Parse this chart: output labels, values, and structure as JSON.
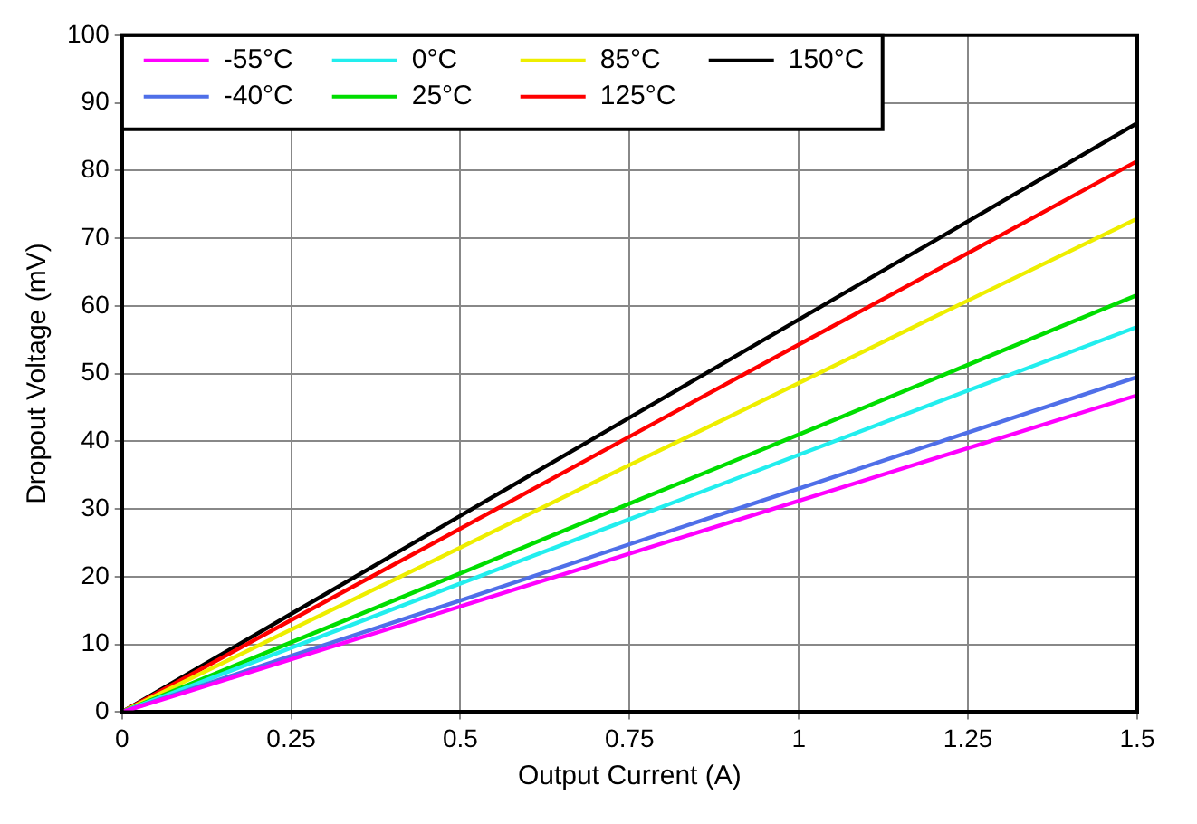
{
  "chart_data": {
    "type": "line",
    "xlabel": "Output Current (A)",
    "ylabel": "Dropout Voltage (mV)",
    "x": [
      0,
      0.25,
      0.5,
      0.75,
      1,
      1.25,
      1.5
    ],
    "series": [
      {
        "name": "-55°C",
        "color": "#ff00ff",
        "values": [
          0,
          7.8,
          15.6,
          23.4,
          31.2,
          39,
          46.8
        ]
      },
      {
        "name": "-40°C",
        "color": "#4f6fe8",
        "values": [
          0,
          8.3,
          16.5,
          24.8,
          33,
          41.3,
          49.5
        ]
      },
      {
        "name": "0°C",
        "color": "#22eeee",
        "values": [
          0,
          9.5,
          19,
          28.5,
          38,
          47.5,
          56.9
        ]
      },
      {
        "name": "25°C",
        "color": "#00dd00",
        "values": [
          0,
          10.3,
          20.5,
          30.8,
          41,
          51.3,
          61.6
        ]
      },
      {
        "name": "85°C",
        "color": "#eeee00",
        "values": [
          0,
          12.2,
          24.3,
          36.5,
          48.6,
          60.8,
          72.9
        ]
      },
      {
        "name": "125°C",
        "color": "#ff0000",
        "values": [
          0,
          13.6,
          27.1,
          40.7,
          54.3,
          67.8,
          81.4
        ]
      },
      {
        "name": "150°C",
        "color": "#000000",
        "values": [
          0,
          14.5,
          29,
          43.5,
          58,
          72.5,
          87
        ]
      }
    ],
    "xlim": [
      0,
      1.5
    ],
    "xticks": [
      0,
      0.25,
      0.5,
      0.75,
      1,
      1.25,
      1.5
    ],
    "ylim": [
      0,
      100
    ],
    "yticks": [
      0,
      10,
      20,
      30,
      40,
      50,
      60,
      70,
      80,
      90,
      100
    ],
    "grid": true,
    "legend": "top left",
    "marker": "none",
    "line_style": "solid"
  }
}
